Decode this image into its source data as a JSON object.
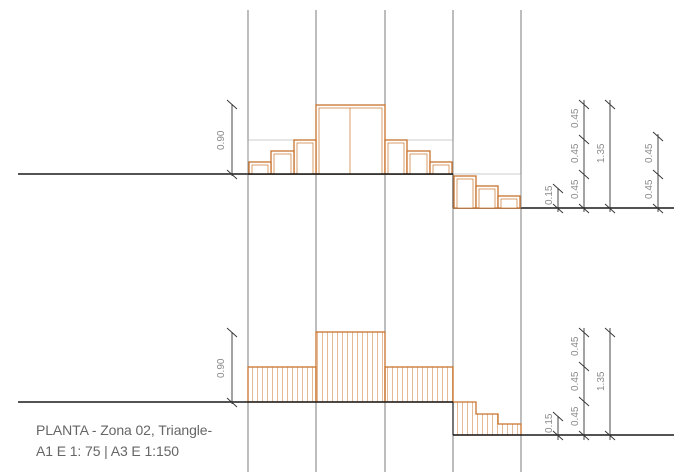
{
  "drawing": {
    "caption": {
      "line1": "PLANTA - Zona 02, Triangle-",
      "line2": "A1 E  1: 75  |  A3 E  1:150"
    },
    "upper_elevation": {
      "dim_left": "0.90",
      "dim_small": "0.15",
      "dim_col1": [
        "0.45",
        "0.45",
        "0.45"
      ],
      "dim_col2": "1.35",
      "dim_col3": [
        "0.45",
        "0.45"
      ]
    },
    "lower_elevation": {
      "dim_left": "0.90",
      "dim_small": "0.15",
      "dim_col1": [
        "0.45",
        "0.45",
        "0.45"
      ],
      "dim_col2": "1.35"
    },
    "colors": {
      "furniture": "#c8732c",
      "line": "#1a1a1a",
      "grid": "#444444",
      "dimension": "#8a8a8a",
      "caption": "#666666"
    }
  }
}
